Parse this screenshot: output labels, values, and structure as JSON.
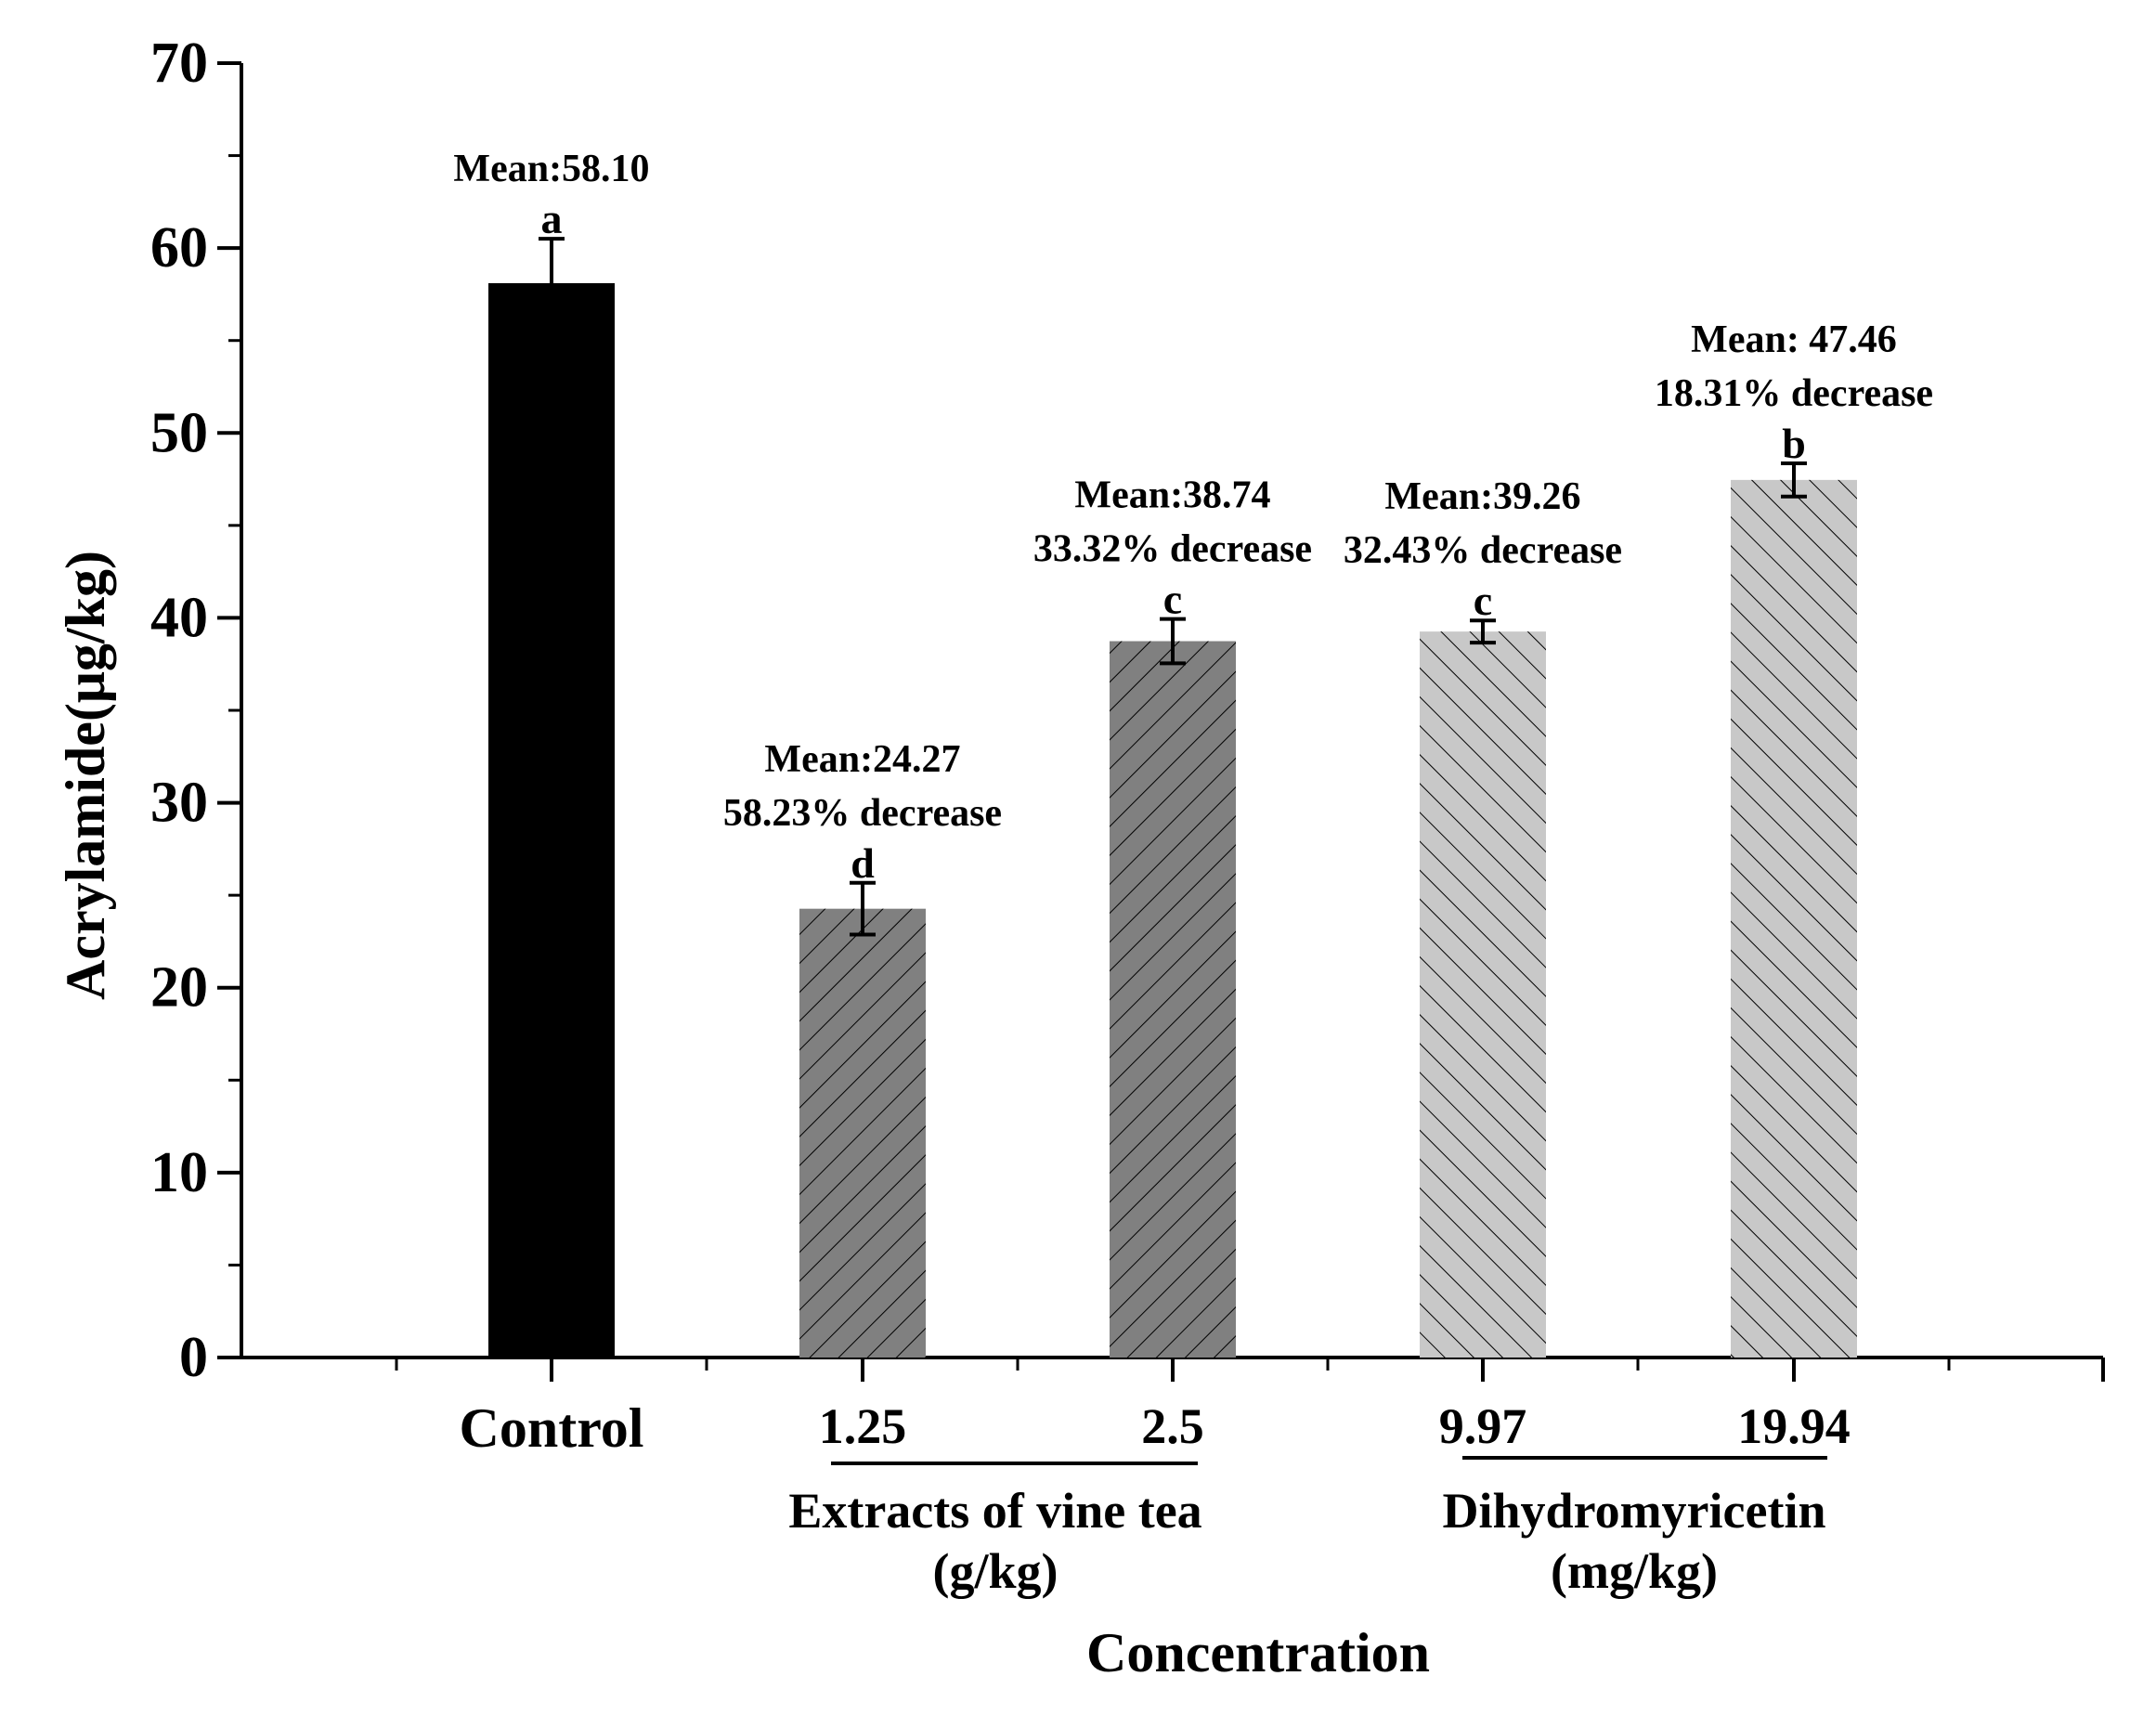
{
  "chart_data": {
    "type": "bar",
    "ylabel": "Acrylamide(μg/kg)",
    "xlabel": "Concentration",
    "ylim": [
      0,
      70
    ],
    "yticks": [
      0,
      10,
      20,
      30,
      40,
      50,
      60,
      70
    ],
    "categories": [
      "Control",
      "1.25",
      "2.5",
      "9.97",
      "19.94"
    ],
    "values": [
      58.1,
      24.27,
      38.74,
      39.26,
      47.46
    ],
    "errors": [
      2.4,
      1.4,
      1.2,
      0.6,
      0.9
    ],
    "significance": [
      "a",
      "d",
      "c",
      "c",
      "b"
    ],
    "annotations": [
      {
        "mean": "Mean:58.10",
        "decrease": ""
      },
      {
        "mean": "Mean:24.27",
        "decrease": "58.23% decrease"
      },
      {
        "mean": "Mean:38.74",
        "decrease": "33.32% decrease"
      },
      {
        "mean": "Mean:39.26",
        "decrease": "32.43% decrease"
      },
      {
        "mean": "Mean: 47.46",
        "decrease": "18.31% decrease"
      }
    ],
    "groups": [
      {
        "label": "Extracts of vine tea",
        "unit": "(g/kg)",
        "members": [
          1,
          2
        ]
      },
      {
        "label": "Dihydromyricetin",
        "unit": "(mg/kg)",
        "members": [
          3,
          4
        ]
      }
    ],
    "colors": {
      "control": "#000000",
      "vine_tea": "#808080",
      "dihydromyricetin": "#c8c8c8",
      "hatch": "#000000"
    }
  }
}
